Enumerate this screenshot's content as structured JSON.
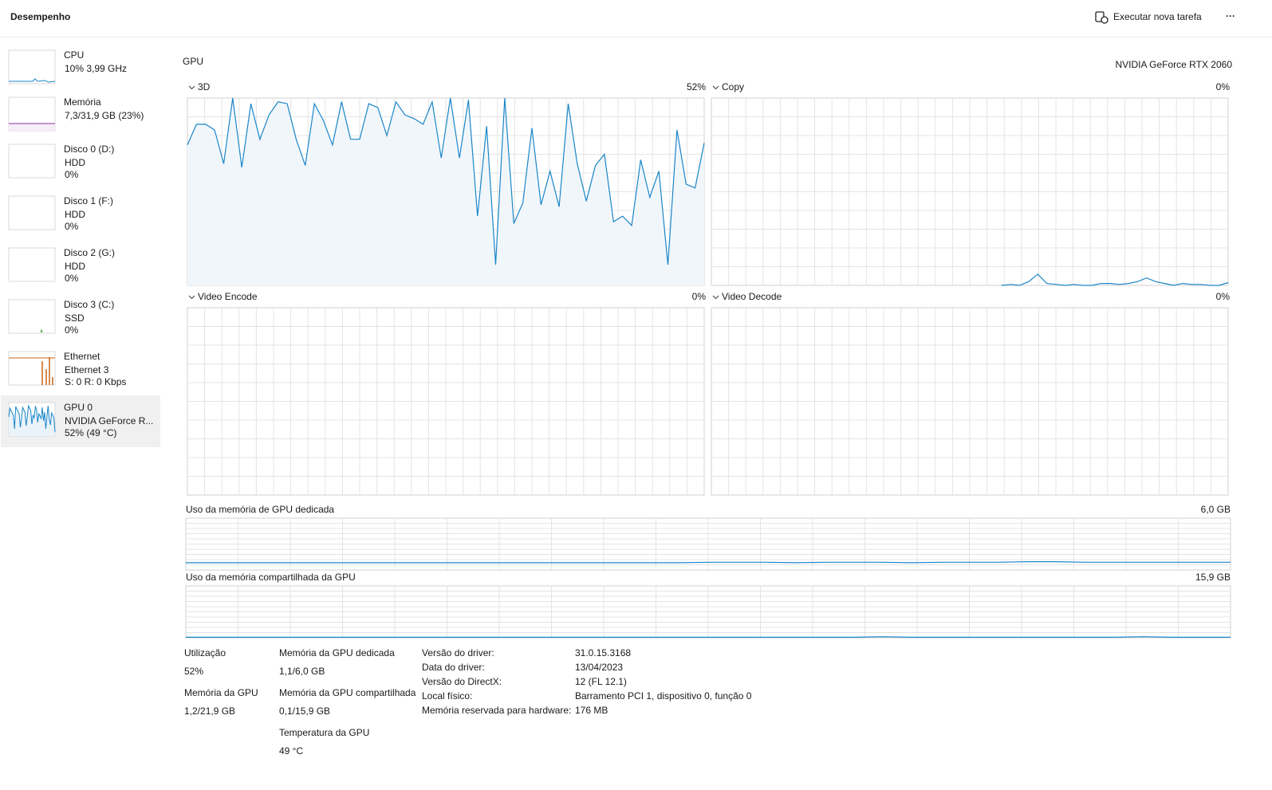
{
  "header": {
    "title": "Desempenho",
    "new_task": "Executar nova tarefa",
    "more": "···"
  },
  "sidebar": [
    {
      "name": "CPU",
      "line1": "10% 3,99 GHz"
    },
    {
      "name": "Memória",
      "line1": "7,3/31,9 GB (23%)"
    },
    {
      "name": "Disco 0 (D:)",
      "line1": "HDD",
      "line2": "0%"
    },
    {
      "name": "Disco 1 (F:)",
      "line1": "HDD",
      "line2": "0%"
    },
    {
      "name": "Disco 2 (G:)",
      "line1": "HDD",
      "line2": "0%"
    },
    {
      "name": "Disco 3 (C:)",
      "line1": "SSD",
      "line2": "0%"
    },
    {
      "name": "Ethernet",
      "line1": "Ethernet 3",
      "line2": "S: 0 R: 0 Kbps"
    },
    {
      "name": "GPU 0",
      "line1": "NVIDIA GeForce R...",
      "line2": "52% (49 °C)"
    }
  ],
  "main": {
    "title": "GPU",
    "adapter": "NVIDIA GeForce RTX 2060",
    "engines": [
      {
        "name": "3D",
        "usage": "52%",
        "values": [
          75,
          86,
          86,
          83,
          65,
          100,
          63,
          97,
          78,
          91,
          98,
          97,
          78,
          64,
          97,
          88,
          75,
          98,
          78,
          78,
          97,
          95,
          80,
          98,
          91,
          89,
          86,
          98,
          68,
          100,
          68,
          99,
          37,
          85,
          11,
          100,
          33,
          44,
          84,
          43,
          61,
          42,
          97,
          65,
          45,
          64,
          70,
          34,
          37,
          32,
          67,
          47,
          61,
          11,
          83,
          54,
          52,
          76
        ]
      },
      {
        "name": "Copy",
        "usage": "0%",
        "values": [
          null,
          null,
          null,
          null,
          null,
          null,
          null,
          null,
          null,
          null,
          null,
          null,
          null,
          null,
          null,
          null,
          null,
          null,
          null,
          null,
          null,
          null,
          null,
          null,
          null,
          null,
          null,
          null,
          null,
          null,
          null,
          null,
          0,
          0.5,
          0,
          2,
          6,
          1,
          0.5,
          0,
          0.5,
          0,
          0,
          1,
          1,
          0.5,
          1,
          2,
          4,
          2,
          1,
          0,
          1,
          0.5,
          0.5,
          0,
          0,
          1.5
        ]
      },
      {
        "name": "Video Encode",
        "usage": "0%"
      },
      {
        "name": "Video Decode",
        "usage": "0%"
      }
    ],
    "memory": [
      {
        "label": "Uso da memória de GPU dedicada",
        "max": "6,0 GB",
        "values": [
          14,
          14,
          14,
          14,
          14,
          14,
          14,
          14,
          14,
          14,
          14,
          14,
          14,
          14,
          14,
          14,
          14,
          14,
          15,
          15,
          15,
          14,
          15,
          15,
          15,
          14,
          15,
          15,
          15,
          16,
          16,
          15,
          15,
          15,
          15,
          15,
          15
        ]
      },
      {
        "label": "Uso da memória compartilhada da GPU",
        "max": "15,9 GB",
        "values": [
          1,
          1,
          1,
          1,
          1,
          1,
          1,
          1,
          1,
          1,
          1,
          1,
          1,
          1,
          1,
          1,
          1,
          1,
          1,
          1,
          1,
          1,
          1,
          1,
          2,
          1,
          1,
          1,
          1,
          1,
          1,
          1,
          1,
          2,
          1,
          1,
          1
        ]
      }
    ],
    "stats": [
      {
        "label": "Utilização",
        "value": "52%"
      },
      {
        "label": "Memória da GPU",
        "value": "1,2/21,9 GB"
      },
      {
        "label": "Memória da GPU dedicada",
        "value": "1,1/6,0 GB"
      },
      {
        "label": "Memória da GPU compartilhada",
        "value": "0,1/15,9 GB"
      },
      {
        "label": "Temperatura da GPU",
        "value": "49 °C"
      }
    ],
    "details": [
      [
        "Versão do driver:",
        "31.0.15.3168"
      ],
      [
        "Data do driver:",
        "13/04/2023"
      ],
      [
        "Versão do DirectX:",
        "12 (FL 12.1)"
      ],
      [
        "Local físico:",
        "Barramento PCI 1, dispositivo 0, função 0"
      ],
      [
        "Memória reservada para hardware:",
        "176 MB"
      ]
    ]
  }
}
